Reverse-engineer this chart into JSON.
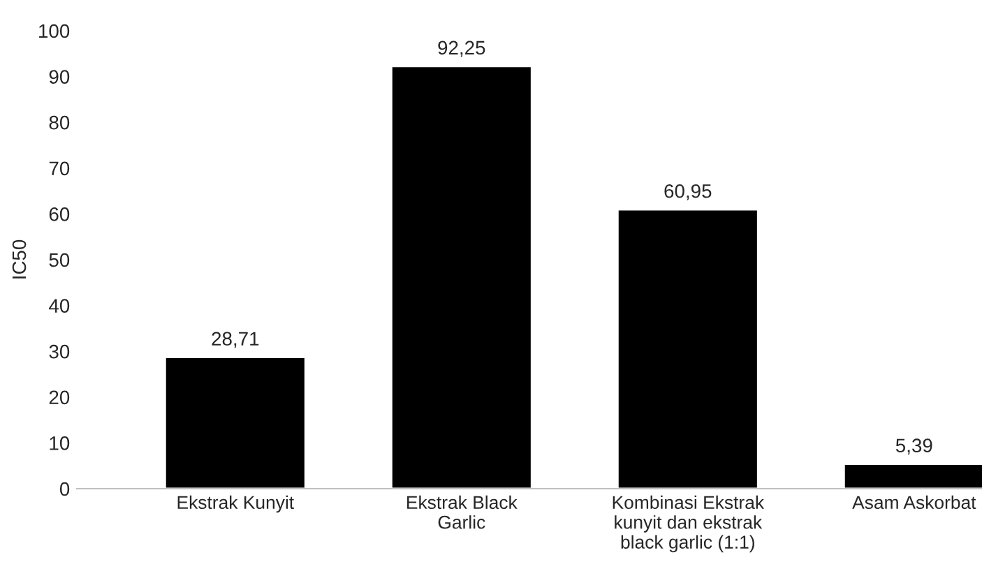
{
  "chart_data": {
    "type": "bar",
    "ylabel": "IC50",
    "categories": [
      "Ekstrak Kunyit",
      "Ekstrak Black\nGarlic",
      "Kombinasi Ekstrak\nkunyit dan ekstrak\nblack garlic (1:1)",
      "Asam Askorbat"
    ],
    "values": [
      28.71,
      92.25,
      60.95,
      5.39
    ],
    "value_labels": [
      "28,71",
      "92,25",
      "60,95",
      "5,39"
    ],
    "color": "#000000",
    "ylim": [
      0,
      100
    ],
    "yticks": [
      0,
      10,
      20,
      30,
      40,
      50,
      60,
      70,
      80,
      90,
      100
    ],
    "grid": false,
    "legend": false
  }
}
